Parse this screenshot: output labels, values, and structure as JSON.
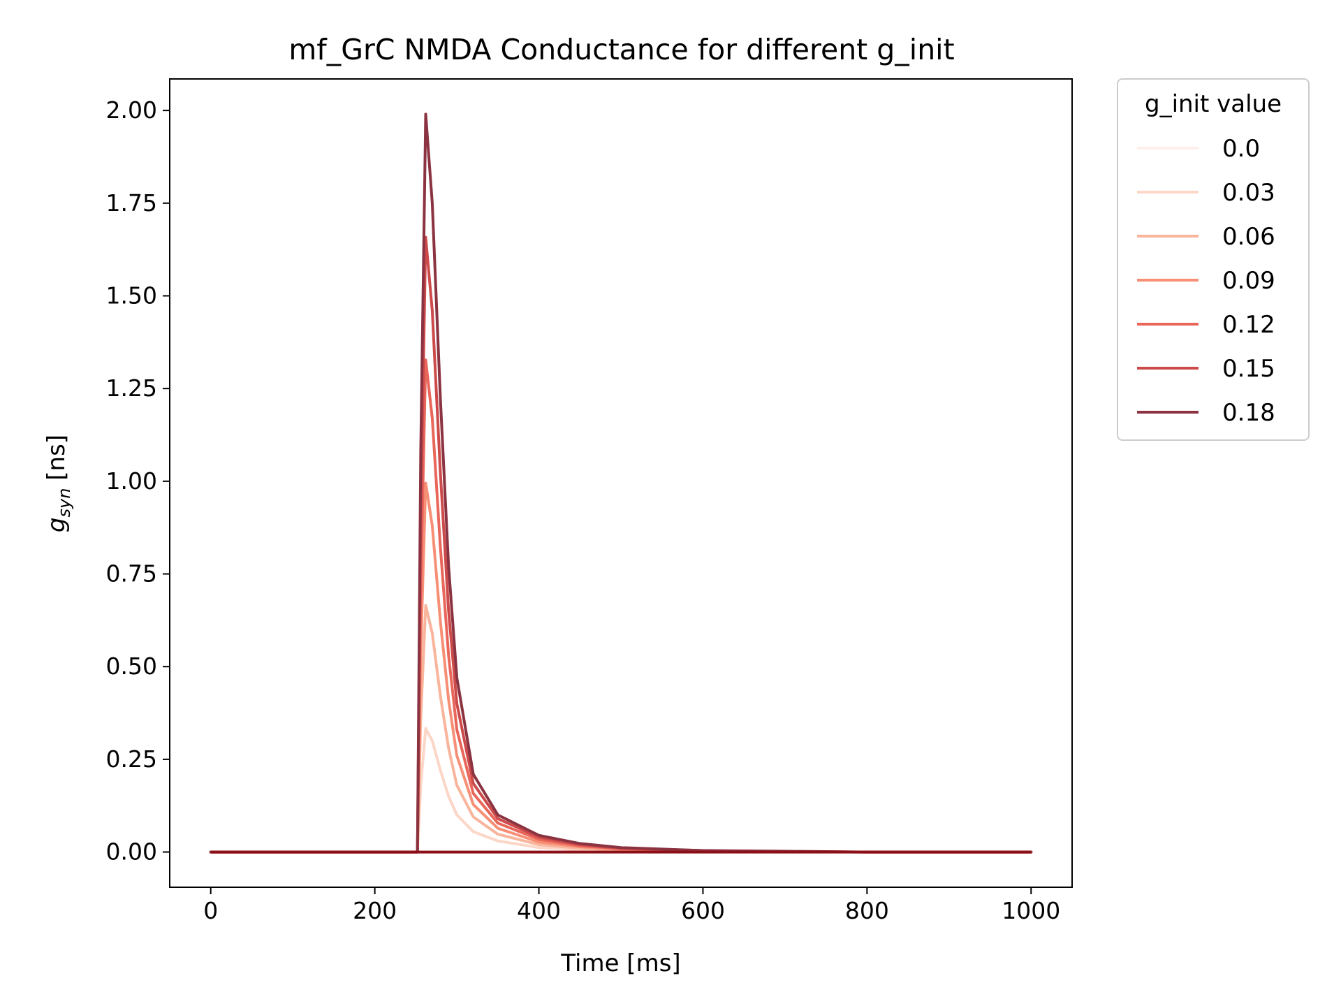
{
  "chart_data": {
    "type": "line",
    "title": "mf_GrC NMDA Conductance for different g_init",
    "xlabel": "Time [ms]",
    "ylabel": {
      "main": "g",
      "sub": "syn",
      "unit": " [ns]"
    },
    "xlim": [
      -50,
      1050
    ],
    "ylim": [
      -0.095,
      2.085
    ],
    "xticks": [
      0,
      200,
      400,
      600,
      800,
      1000
    ],
    "xtick_labels": [
      "0",
      "200",
      "400",
      "600",
      "800",
      "1000"
    ],
    "yticks": [
      0,
      0.25,
      0.5,
      0.75,
      1.0,
      1.25,
      1.5,
      1.75,
      2.0
    ],
    "ytick_labels": [
      "0.00",
      "0.25",
      "0.50",
      "0.75",
      "1.00",
      "1.25",
      "1.50",
      "1.75",
      "2.00"
    ],
    "grid": false,
    "legend": {
      "title": "g_init value",
      "placement": "outside-top-right"
    },
    "stimulus_onset_ms": 252,
    "peak_time_ms": 262,
    "x": [
      0,
      252,
      256,
      262,
      270,
      280,
      290,
      300,
      320,
      350,
      400,
      450,
      500,
      600,
      700,
      800,
      1000
    ],
    "series": [
      {
        "name": "0.0",
        "color": "#fdf0ea",
        "values": [
          0,
          0,
          0,
          0,
          0,
          0,
          0,
          0,
          0,
          0,
          0,
          0,
          0,
          0,
          0,
          0,
          0
        ]
      },
      {
        "name": "0.03",
        "color": "#fcd6c7",
        "values": [
          0,
          0,
          0.18,
          0.333,
          0.3,
          0.22,
          0.15,
          0.1,
          0.055,
          0.03,
          0.012,
          0.006,
          0.003,
          0.001,
          0,
          0,
          0
        ]
      },
      {
        "name": "0.06",
        "color": "#f9b49c",
        "values": [
          0,
          0,
          0.36,
          0.665,
          0.59,
          0.42,
          0.28,
          0.18,
          0.095,
          0.048,
          0.02,
          0.01,
          0.005,
          0.002,
          0.001,
          0,
          0
        ]
      },
      {
        "name": "0.09",
        "color": "#f78f76",
        "values": [
          0,
          0,
          0.54,
          0.995,
          0.88,
          0.62,
          0.41,
          0.26,
          0.128,
          0.064,
          0.027,
          0.014,
          0.007,
          0.003,
          0.001,
          0,
          0
        ]
      },
      {
        "name": "0.12",
        "color": "#e9665a",
        "values": [
          0,
          0,
          0.72,
          1.327,
          1.17,
          0.82,
          0.53,
          0.33,
          0.158,
          0.078,
          0.034,
          0.017,
          0.009,
          0.003,
          0.001,
          0,
          0
        ]
      },
      {
        "name": "0.15",
        "color": "#cd4a4a",
        "values": [
          0,
          0,
          0.9,
          1.658,
          1.46,
          1.02,
          0.65,
          0.4,
          0.185,
          0.09,
          0.04,
          0.02,
          0.01,
          0.004,
          0.001,
          0,
          0
        ]
      },
      {
        "name": "0.18",
        "color": "#8b3341",
        "values": [
          0,
          0,
          1.08,
          1.99,
          1.75,
          1.22,
          0.77,
          0.47,
          0.21,
          0.1,
          0.045,
          0.023,
          0.012,
          0.004,
          0.002,
          0,
          0
        ]
      }
    ],
    "extra_line": {
      "color": "#8b0f17",
      "values": [
        0,
        0,
        0,
        0,
        0,
        0,
        0,
        0,
        0,
        0,
        0,
        0,
        0,
        0,
        0,
        0,
        0
      ]
    }
  }
}
